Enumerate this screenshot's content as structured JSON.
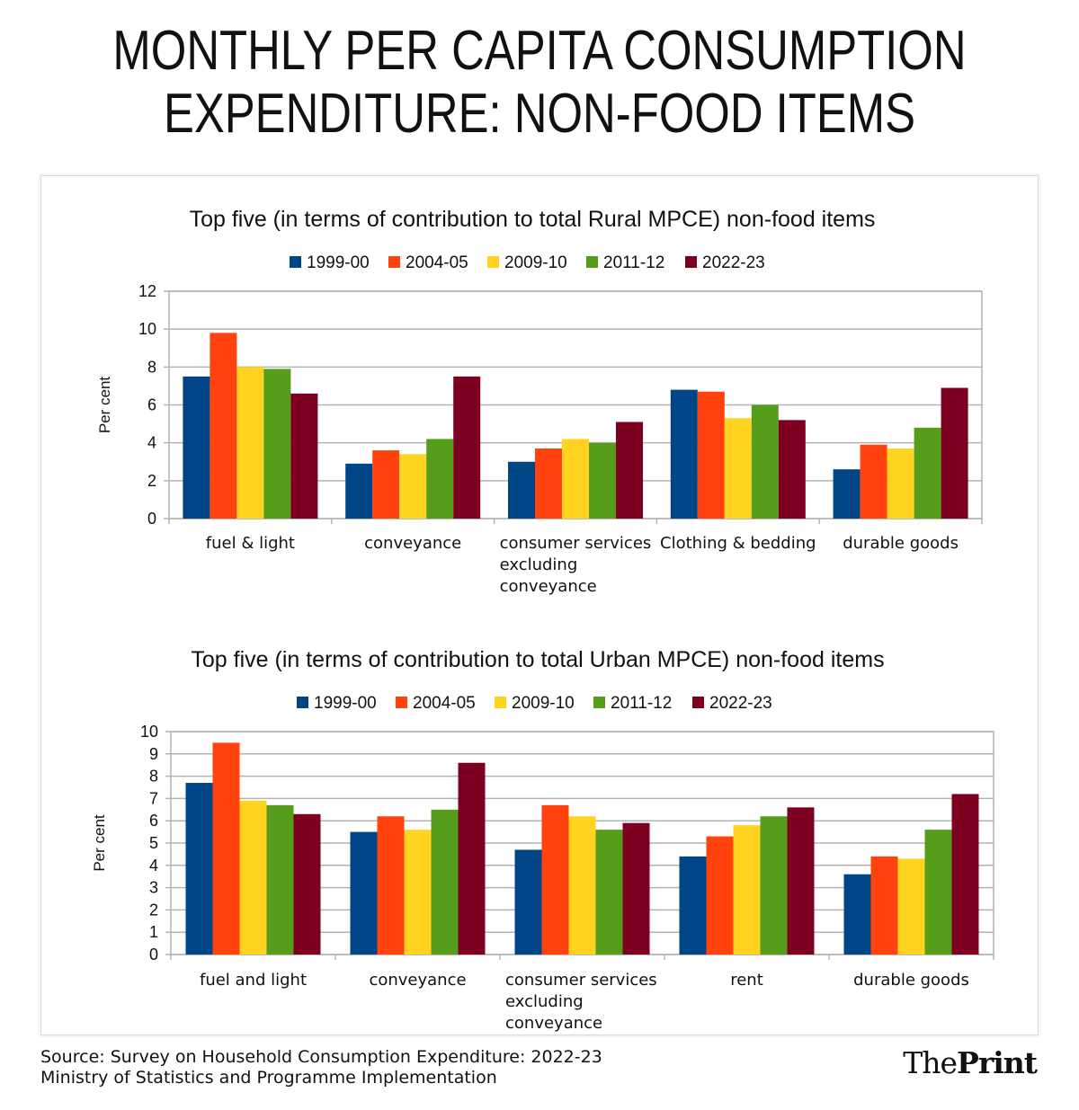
{
  "title": {
    "line1": "MONTHLY PER CAPITA CONSUMPTION",
    "line2": "EXPENDITURE: NON-FOOD ITEMS"
  },
  "colors": {
    "1999-00": "#004586",
    "2004-05": "#ff420e",
    "2009-10": "#ffd320",
    "2011-12": "#579d1c",
    "2022-23": "#7e0021"
  },
  "chart_data": [
    {
      "type": "bar",
      "title": "Top five (in terms of contribution to total Rural MPCE) non-food items",
      "xlabel": "",
      "ylabel": "Per cent",
      "ylim": [
        0,
        12
      ],
      "yticks": [
        "0",
        "2",
        "4",
        "6",
        "8",
        "10",
        "12"
      ],
      "legend_position": "top",
      "grid": true,
      "categories": [
        [
          "fuel & light"
        ],
        [
          "conveyance"
        ],
        [
          "consumer services",
          "excluding",
          "conveyance"
        ],
        [
          "Clothing & bedding"
        ],
        [
          "durable goods"
        ]
      ],
      "series": [
        {
          "name": "1999-00",
          "values": [
            7.5,
            2.9,
            3.0,
            6.8,
            2.6
          ]
        },
        {
          "name": "2004-05",
          "values": [
            9.8,
            3.6,
            3.7,
            6.7,
            3.9
          ]
        },
        {
          "name": "2009-10",
          "values": [
            8.0,
            3.4,
            4.2,
            5.3,
            3.7
          ]
        },
        {
          "name": "2011-12",
          "values": [
            7.9,
            4.2,
            4.0,
            6.0,
            4.8
          ]
        },
        {
          "name": "2022-23",
          "values": [
            6.6,
            7.5,
            5.1,
            5.2,
            6.9
          ]
        }
      ]
    },
    {
      "type": "bar",
      "title": "Top five (in terms of contribution to total Urban MPCE) non-food items",
      "xlabel": "",
      "ylabel": "Per cent",
      "ylim": [
        0,
        10
      ],
      "yticks": [
        "0",
        "1",
        "2",
        "3",
        "4",
        "5",
        "6",
        "7",
        "8",
        "9",
        "10"
      ],
      "legend_position": "top",
      "grid": true,
      "categories": [
        [
          "fuel and light"
        ],
        [
          "conveyance"
        ],
        [
          "consumer services",
          "excluding",
          "conveyance"
        ],
        [
          "rent"
        ],
        [
          "durable goods"
        ]
      ],
      "series": [
        {
          "name": "1999-00",
          "values": [
            7.7,
            5.5,
            4.7,
            4.4,
            3.6
          ]
        },
        {
          "name": "2004-05",
          "values": [
            9.5,
            6.2,
            6.7,
            5.3,
            4.4
          ]
        },
        {
          "name": "2009-10",
          "values": [
            6.9,
            5.6,
            6.2,
            5.8,
            4.3
          ]
        },
        {
          "name": "2011-12",
          "values": [
            6.7,
            6.5,
            5.6,
            6.2,
            5.6
          ]
        },
        {
          "name": "2022-23",
          "values": [
            6.3,
            8.6,
            5.9,
            6.6,
            7.2
          ]
        }
      ]
    }
  ],
  "footer": {
    "source_line1": "Source: Survey on Household Consumption Expenditure: 2022-23",
    "source_line2": "Ministry of Statistics and Programme Implementation",
    "brand_the": "The",
    "brand_print": "Print"
  }
}
